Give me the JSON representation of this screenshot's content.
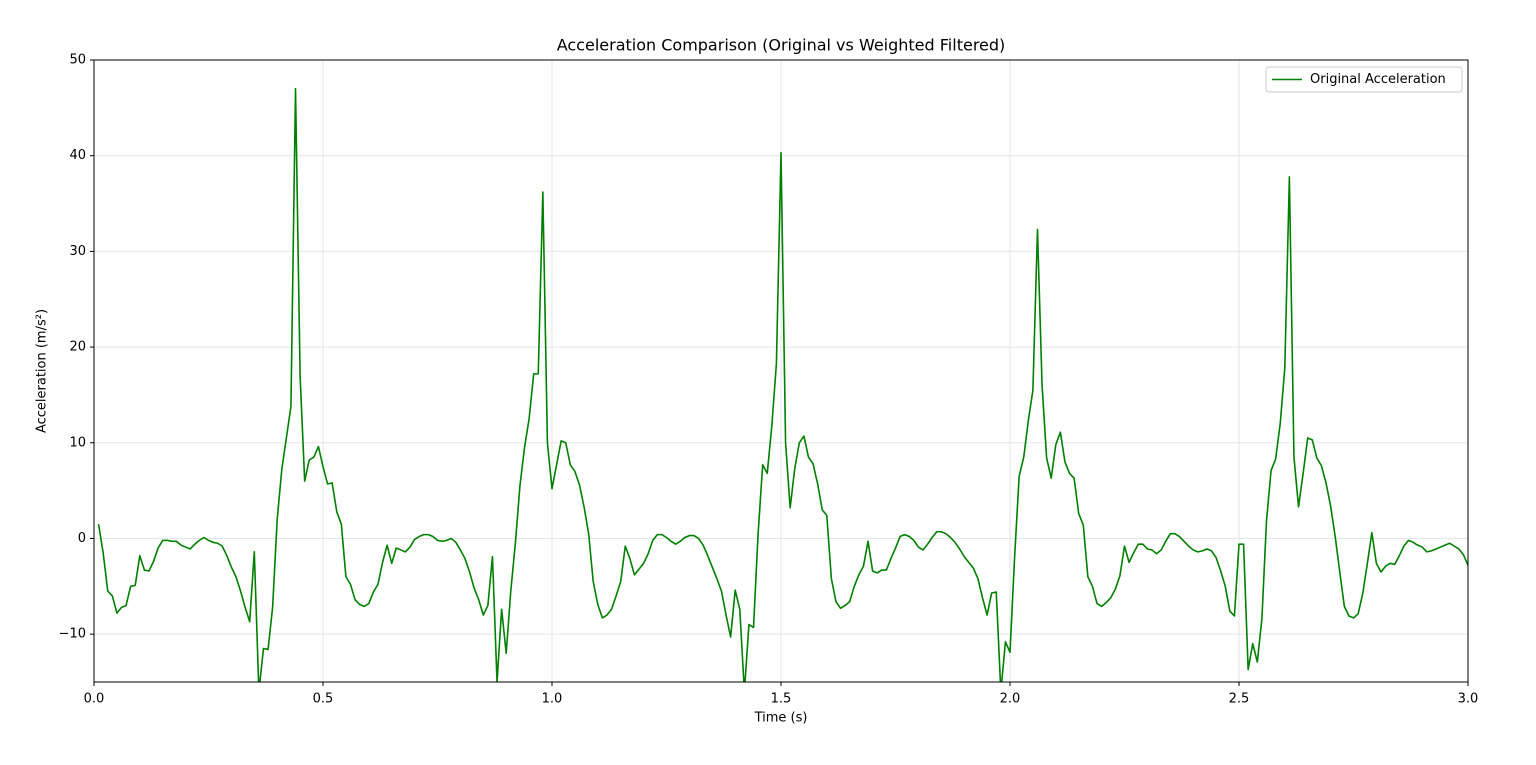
{
  "chart_data": {
    "type": "line",
    "title": "Acceleration Comparison (Original vs Weighted Filtered)",
    "xlabel": "Time (s)",
    "ylabel": "Acceleration (m/s²)",
    "xlim": [
      0,
      3
    ],
    "ylim": [
      -15,
      50
    ],
    "xticks": [
      {
        "value": 0,
        "label": "0.0"
      },
      0.5,
      {
        "value": 1,
        "label": "1.0"
      },
      1.5,
      {
        "value": 2,
        "label": "2.0"
      },
      2.5,
      {
        "value": 3,
        "label": "3.0"
      }
    ],
    "yticks": [
      {
        "value": -10,
        "label": "−10"
      },
      0,
      10,
      20,
      30,
      40,
      50
    ],
    "grid": true,
    "legend": "upper right",
    "x": [
      0.01,
      0.02,
      0.03,
      0.04,
      0.05,
      0.06,
      0.07,
      0.08,
      0.09,
      0.1,
      0.11,
      0.12,
      0.13,
      0.14,
      0.15,
      0.16,
      0.17,
      0.18,
      0.19,
      0.2,
      0.21,
      0.22,
      0.23,
      0.24,
      0.25,
      0.26,
      0.27,
      0.28,
      0.29,
      0.3,
      0.31,
      0.32,
      0.33,
      0.34,
      0.35,
      0.36,
      0.37,
      0.38,
      0.39,
      0.4,
      0.41,
      0.42,
      0.43,
      0.44,
      0.45,
      0.46,
      0.47,
      0.48,
      0.49,
      0.5,
      0.51,
      0.52,
      0.53,
      0.54,
      0.55,
      0.56,
      0.57,
      0.58,
      0.59,
      0.6,
      0.61,
      0.62,
      0.63,
      0.64,
      0.65,
      0.66,
      0.67,
      0.68,
      0.69,
      0.7,
      0.71,
      0.72,
      0.73,
      0.74,
      0.75,
      0.76,
      0.77,
      0.78,
      0.79,
      0.8,
      0.81,
      0.82,
      0.83,
      0.84,
      0.85,
      0.86,
      0.87,
      0.88,
      0.89,
      0.9,
      0.91,
      0.92,
      0.93,
      0.94,
      0.95,
      0.96,
      0.97,
      0.98,
      0.99,
      1,
      1.01,
      1.02,
      1.03,
      1.04,
      1.05,
      1.06,
      1.07,
      1.08,
      1.09,
      1.1,
      1.11,
      1.12,
      1.13,
      1.14,
      1.15,
      1.16,
      1.17,
      1.18,
      1.19,
      1.2,
      1.21,
      1.22,
      1.23,
      1.24,
      1.25,
      1.26,
      1.27,
      1.28,
      1.29,
      1.3,
      1.31,
      1.32,
      1.33,
      1.34,
      1.35,
      1.36,
      1.37,
      1.38,
      1.39,
      1.4,
      1.41,
      1.42,
      1.43,
      1.44,
      1.45,
      1.46,
      1.47,
      1.48,
      1.49,
      1.5,
      1.51,
      1.52,
      1.53,
      1.54,
      1.55,
      1.56,
      1.57,
      1.58,
      1.59,
      1.6,
      1.61,
      1.62,
      1.63,
      1.64,
      1.65,
      1.66,
      1.67,
      1.68,
      1.69,
      1.7,
      1.71,
      1.72,
      1.73,
      1.74,
      1.75,
      1.76,
      1.77,
      1.78,
      1.79,
      1.8,
      1.81,
      1.82,
      1.83,
      1.84,
      1.85,
      1.86,
      1.87,
      1.88,
      1.89,
      1.9,
      1.91,
      1.92,
      1.93,
      1.94,
      1.95,
      1.96,
      1.97,
      1.98,
      1.99,
      2,
      2.01,
      2.02,
      2.03,
      2.04,
      2.05,
      2.06,
      2.07,
      2.08,
      2.09,
      2.1,
      2.11,
      2.12,
      2.13,
      2.14,
      2.15,
      2.16,
      2.17,
      2.18,
      2.19,
      2.2,
      2.21,
      2.22,
      2.23,
      2.24,
      2.25,
      2.26,
      2.27,
      2.28,
      2.29,
      2.3,
      2.31,
      2.32,
      2.33,
      2.34,
      2.35,
      2.36,
      2.37,
      2.38,
      2.39,
      2.4,
      2.41,
      2.42,
      2.43,
      2.44,
      2.45,
      2.46,
      2.47,
      2.48,
      2.49,
      2.5,
      2.51,
      2.52,
      2.53,
      2.54,
      2.55,
      2.56,
      2.57,
      2.58,
      2.59,
      2.6,
      2.61,
      2.62,
      2.63,
      2.64,
      2.65,
      2.66,
      2.67,
      2.68,
      2.69,
      2.7,
      2.71,
      2.72,
      2.73,
      2.74,
      2.75,
      2.76,
      2.77,
      2.78,
      2.79,
      2.8,
      2.81,
      2.82,
      2.83,
      2.84,
      2.85,
      2.86,
      2.87,
      2.88,
      2.89,
      2.9,
      2.91,
      2.92,
      2.93,
      2.94,
      2.95,
      2.96,
      2.97,
      2.98,
      2.99,
      3
    ],
    "series": [
      {
        "name": "Original Acceleration",
        "color": "#008000",
        "values": [
          1.5,
          -1.5,
          -5.5,
          -6,
          -7.8,
          -7.2,
          -7,
          -5,
          -4.9,
          -1.8,
          -3.3,
          -3.4,
          -2.4,
          -1,
          -0.2,
          -0.2,
          -0.3,
          -0.3,
          -0.7,
          -0.9,
          -1.1,
          -0.6,
          -0.2,
          0.1,
          -0.2,
          -0.4,
          -0.5,
          -0.8,
          -1.8,
          -3,
          -4,
          -5.5,
          -7.2,
          -8.7,
          -1.4,
          -16,
          -11.5,
          -11.6,
          -7.2,
          2,
          7.2,
          10.5,
          13.8,
          47,
          17,
          6,
          8.2,
          8.5,
          9.6,
          7.5,
          5.7,
          5.8,
          2.8,
          1.5,
          -4,
          -4.8,
          -6.4,
          -6.9,
          -7.1,
          -6.8,
          -5.6,
          -4.8,
          -2.5,
          -0.7,
          -2.6,
          -1,
          -1.2,
          -1.4,
          -0.9,
          -0.1,
          0.2,
          0.4,
          0.4,
          0.2,
          -0.2,
          -0.3,
          -0.2,
          0,
          -0.4,
          -1.2,
          -2.1,
          -3.5,
          -5.2,
          -6.4,
          -8,
          -7,
          -1.9,
          -15,
          -7.4,
          -12,
          -5.5,
          -0.5,
          5.5,
          9.5,
          12.5,
          17.2,
          17.2,
          36.2,
          10,
          5.2,
          7.7,
          10.2,
          10,
          7.7,
          7,
          5.6,
          3.3,
          0.5,
          -4.5,
          -6.9,
          -8.3,
          -8,
          -7.4,
          -6,
          -4.5,
          -0.8,
          -2.1,
          -3.8,
          -3.2,
          -2.6,
          -1.6,
          -0.2,
          0.4,
          0.4,
          0.1,
          -0.3,
          -0.6,
          -0.3,
          0.1,
          0.3,
          0.3,
          0,
          -0.7,
          -1.8,
          -3,
          -4.2,
          -5.5,
          -8,
          -10.3,
          -5.4,
          -7.4,
          -16,
          -9,
          -9.3,
          0.5,
          7.7,
          6.8,
          11.8,
          18.3,
          40.3,
          10,
          3.2,
          7.3,
          10,
          10.7,
          8.5,
          7.8,
          5.7,
          3,
          2.4,
          -4.2,
          -6.6,
          -7.3,
          -7,
          -6.6,
          -5,
          -3.8,
          -2.9,
          -0.3,
          -3.4,
          -3.6,
          -3.3,
          -3.3,
          -2.1,
          -1,
          0.2,
          0.4,
          0.2,
          -0.2,
          -0.9,
          -1.2,
          -0.6,
          0.1,
          0.7,
          0.7,
          0.5,
          0.1,
          -0.4,
          -1.1,
          -1.9,
          -2.5,
          -3.1,
          -4.2,
          -6.2,
          -8,
          -5.7,
          -5.6,
          -16,
          -10.8,
          -11.9,
          -2,
          6.5,
          8.5,
          12.3,
          15.5,
          32.3,
          16,
          8.4,
          6.3,
          9.8,
          11.1,
          8,
          6.8,
          6.3,
          2.6,
          1.4,
          -4,
          -5,
          -6.8,
          -7.1,
          -6.7,
          -6.2,
          -5.3,
          -3.9,
          -0.8,
          -2.5,
          -1.5,
          -0.6,
          -0.6,
          -1.1,
          -1.2,
          -1.6,
          -1.2,
          -0.3,
          0.5,
          0.5,
          0.2,
          -0.3,
          -0.8,
          -1.2,
          -1.4,
          -1.3,
          -1.1,
          -1.3,
          -2,
          -3.4,
          -5,
          -7.6,
          -8.1,
          -0.6,
          -0.6,
          -13.7,
          -11,
          -12.9,
          -8.4,
          1.8,
          7.1,
          8.3,
          12,
          17.8,
          37.8,
          8.5,
          3.3,
          6.8,
          10.5,
          10.3,
          8.4,
          7.6,
          5.8,
          3.4,
          0.2,
          -3.5,
          -7.1,
          -8.1,
          -8.3,
          -7.9,
          -5.8,
          -2.7,
          0.6,
          -2.6,
          -3.5,
          -2.9,
          -2.6,
          -2.7,
          -1.8,
          -0.8,
          -0.2,
          -0.4,
          -0.7,
          -0.9,
          -1.4,
          -1.3,
          -1.1,
          -0.9,
          -0.7,
          -0.5,
          -0.8,
          -1.1,
          -1.7,
          -2.8
        ]
      }
    ]
  }
}
